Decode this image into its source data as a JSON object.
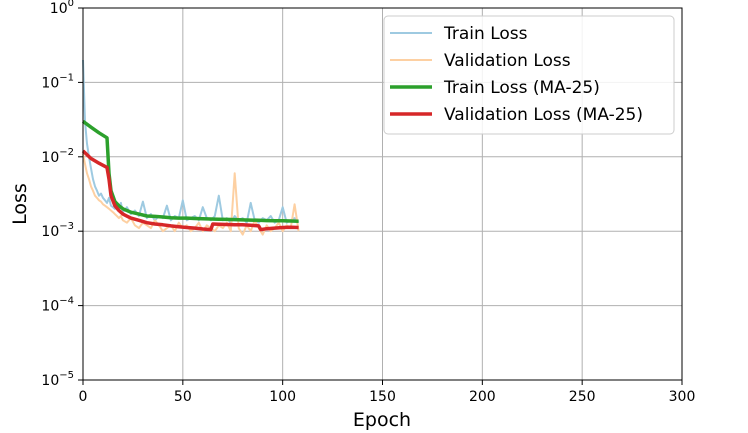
{
  "chart_data": {
    "type": "line",
    "xlabel": "Epoch",
    "ylabel": "Loss",
    "xlim": [
      0,
      300
    ],
    "ylim": [
      1e-05,
      1
    ],
    "yscale": "log",
    "grid": true,
    "legend_position": "top-right",
    "x_ticks": [
      {
        "value": 0,
        "label": "0"
      },
      {
        "value": 50,
        "label": "50"
      },
      {
        "value": 100,
        "label": "100"
      },
      {
        "value": 150,
        "label": "150"
      },
      {
        "value": 200,
        "label": "200"
      },
      {
        "value": 250,
        "label": "250"
      },
      {
        "value": 300,
        "label": "300"
      }
    ],
    "y_ticks": [
      {
        "value": 1,
        "base": "10",
        "exp": "0"
      },
      {
        "value": 0.1,
        "base": "10",
        "exp": "−1"
      },
      {
        "value": 0.01,
        "base": "10",
        "exp": "−2"
      },
      {
        "value": 0.001,
        "base": "10",
        "exp": "−3"
      },
      {
        "value": 0.0001,
        "base": "10",
        "exp": "−4"
      },
      {
        "value": 1e-05,
        "base": "10",
        "exp": "−5"
      }
    ],
    "series": [
      {
        "name": "Train Loss",
        "color": "#9ecae1",
        "width": 2,
        "x": [
          0,
          1,
          2,
          3,
          4,
          5,
          6,
          7,
          8,
          9,
          10,
          11,
          12,
          13,
          14,
          15,
          16,
          17,
          18,
          19,
          20,
          22,
          24,
          26,
          28,
          30,
          32,
          34,
          36,
          38,
          40,
          42,
          44,
          46,
          48,
          50,
          52,
          54,
          56,
          58,
          60,
          62,
          64,
          66,
          68,
          70,
          72,
          74,
          76,
          78,
          80,
          82,
          84,
          86,
          88,
          90,
          92,
          94,
          96,
          98,
          100,
          102,
          104,
          106,
          108
        ],
        "y": [
          0.2,
          0.03,
          0.015,
          0.01,
          0.007,
          0.005,
          0.004,
          0.0035,
          0.003,
          0.0032,
          0.0028,
          0.0026,
          0.0024,
          0.0028,
          0.0022,
          0.0021,
          0.002,
          0.0023,
          0.0019,
          0.0024,
          0.0018,
          0.0021,
          0.0017,
          0.0019,
          0.0016,
          0.0025,
          0.0015,
          0.0017,
          0.0014,
          0.0016,
          0.0015,
          0.0022,
          0.0014,
          0.0016,
          0.0015,
          0.0026,
          0.0014,
          0.0015,
          0.0016,
          0.0014,
          0.0021,
          0.0015,
          0.0014,
          0.0016,
          0.003,
          0.0014,
          0.0015,
          0.0013,
          0.0016,
          0.0014,
          0.0015,
          0.0013,
          0.0024,
          0.0014,
          0.0013,
          0.0015,
          0.0014,
          0.0016,
          0.0013,
          0.0014,
          0.0021,
          0.0013,
          0.0014,
          0.0015,
          0.0013
        ]
      },
      {
        "name": "Validation Loss",
        "color": "#fdd0a2",
        "width": 2,
        "x": [
          0,
          1,
          2,
          3,
          4,
          5,
          6,
          7,
          8,
          9,
          10,
          11,
          12,
          13,
          14,
          15,
          16,
          17,
          18,
          19,
          20,
          22,
          24,
          26,
          28,
          30,
          32,
          34,
          36,
          38,
          40,
          42,
          44,
          46,
          48,
          50,
          52,
          54,
          56,
          58,
          60,
          62,
          64,
          66,
          68,
          70,
          72,
          74,
          76,
          78,
          80,
          82,
          84,
          86,
          88,
          90,
          92,
          94,
          96,
          98,
          100,
          102,
          104,
          106,
          108
        ],
        "y": [
          0.011,
          0.008,
          0.006,
          0.005,
          0.004,
          0.0035,
          0.003,
          0.0028,
          0.0026,
          0.0025,
          0.0023,
          0.0022,
          0.0021,
          0.002,
          0.0019,
          0.0018,
          0.0017,
          0.0016,
          0.0015,
          0.0016,
          0.0014,
          0.0013,
          0.0015,
          0.0012,
          0.0011,
          0.0013,
          0.0012,
          0.0011,
          0.0014,
          0.0012,
          0.001,
          0.0011,
          0.0012,
          0.001,
          0.0013,
          0.0011,
          0.0012,
          0.001,
          0.0011,
          0.0013,
          0.001,
          0.0012,
          0.0011,
          0.001,
          0.0012,
          0.0011,
          0.0013,
          0.001,
          0.006,
          0.0011,
          0.0009,
          0.0012,
          0.001,
          0.0014,
          0.0011,
          0.0009,
          0.0012,
          0.001,
          0.0011,
          0.0013,
          0.001,
          0.0012,
          0.0011,
          0.0023,
          0.001
        ]
      },
      {
        "name": "Train Loss (MA-25)",
        "color": "#2ca02c",
        "width": 3.5,
        "x": [
          0,
          4,
          8,
          12,
          13,
          14,
          16,
          18,
          20,
          24,
          28,
          32,
          36,
          40,
          44,
          48,
          52,
          56,
          60,
          64,
          68,
          72,
          76,
          80,
          84,
          88,
          92,
          96,
          100,
          104,
          108
        ],
        "y": [
          0.03,
          0.025,
          0.021,
          0.018,
          0.006,
          0.0035,
          0.0025,
          0.0022,
          0.002,
          0.0018,
          0.0017,
          0.0016,
          0.00158,
          0.00155,
          0.00152,
          0.0015,
          0.0015,
          0.00148,
          0.00147,
          0.00146,
          0.00145,
          0.00144,
          0.00143,
          0.00142,
          0.00141,
          0.0014,
          0.00139,
          0.00138,
          0.00138,
          0.00137,
          0.00136
        ]
      },
      {
        "name": "Validation Loss (MA-25)",
        "color": "#d62728",
        "width": 3.5,
        "x": [
          0,
          4,
          8,
          12,
          13,
          14,
          16,
          18,
          20,
          24,
          28,
          32,
          36,
          40,
          44,
          48,
          52,
          56,
          60,
          64,
          65,
          68,
          72,
          76,
          80,
          84,
          88,
          89,
          92,
          96,
          100,
          104,
          108
        ],
        "y": [
          0.012,
          0.0095,
          0.0082,
          0.0072,
          0.005,
          0.003,
          0.0022,
          0.0019,
          0.0017,
          0.0015,
          0.0014,
          0.0013,
          0.00125,
          0.00122,
          0.00118,
          0.00115,
          0.00112,
          0.0011,
          0.00107,
          0.00105,
          0.00125,
          0.00124,
          0.00123,
          0.00122,
          0.00122,
          0.0012,
          0.00118,
          0.00105,
          0.00108,
          0.0011,
          0.00112,
          0.00113,
          0.00112
        ]
      }
    ]
  }
}
